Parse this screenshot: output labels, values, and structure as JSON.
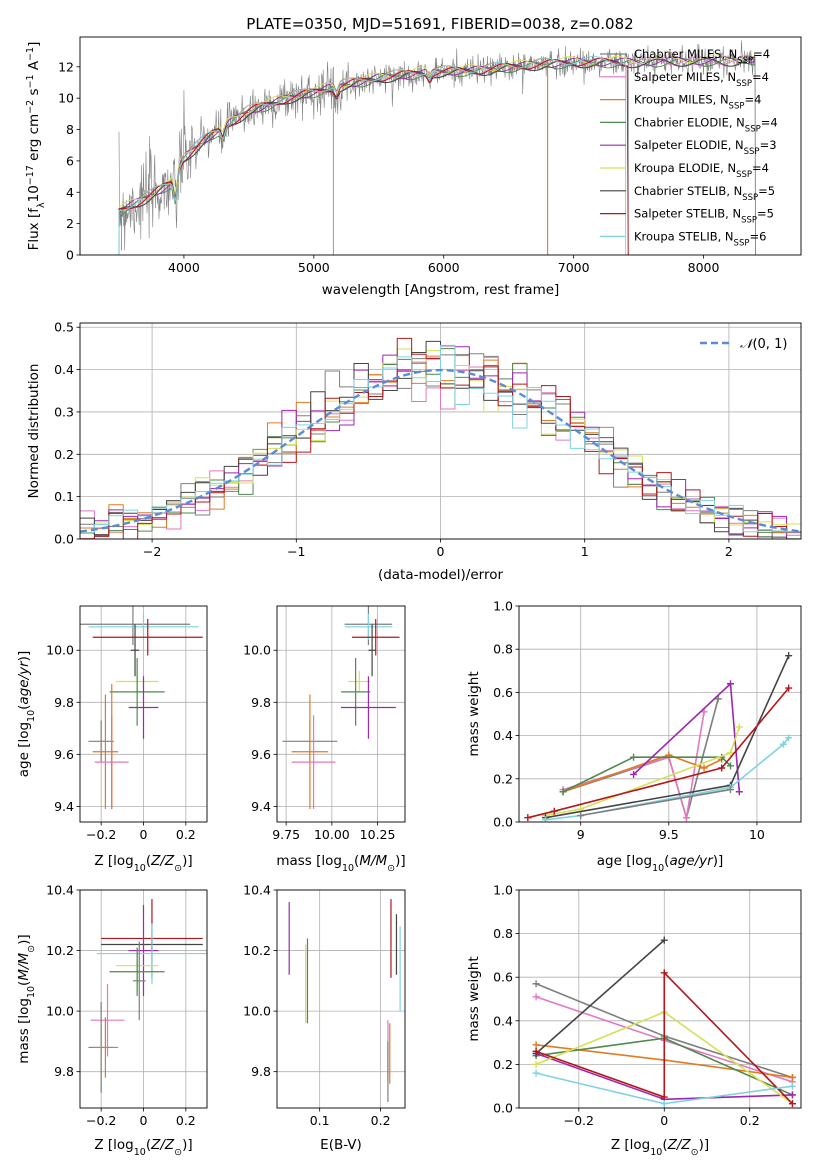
{
  "title": "PLATE=0350, MJD=51691, FIBERID=0038, z=0.082",
  "colors": {
    "Chabrier MILES": "#7f7f7f",
    "Salpeter MILES": "#e377c2",
    "Kroupa MILES": "#e07b22",
    "Chabrier ELODIE": "#4f8a4f",
    "Salpeter ELODIE": "#9d27b0",
    "Kroupa ELODIE": "#d4e157",
    "Chabrier STELIB": "#444444",
    "Salpeter STELIB": "#b3161b",
    "Kroupa STELIB": "#7fd3e0",
    "data": "#808080",
    "gauss": "#5b8bd6",
    "blue": "#5b8bd6"
  },
  "legend_spectrum": [
    {
      "name": "Chabrier MILES, N",
      "sub": "SSP",
      "tail": "=4"
    },
    {
      "name": "Salpeter MILES, N",
      "sub": "SSP",
      "tail": "=4"
    },
    {
      "name": "Kroupa MILES, N",
      "sub": "SSP",
      "tail": "=4"
    },
    {
      "name": "Chabrier ELODIE, N",
      "sub": "SSP",
      "tail": "=4"
    },
    {
      "name": "Salpeter ELODIE, N",
      "sub": "SSP",
      "tail": "=3"
    },
    {
      "name": "Kroupa ELODIE, N",
      "sub": "SSP",
      "tail": "=4"
    },
    {
      "name": "Chabrier STELIB, N",
      "sub": "SSP",
      "tail": "=5"
    },
    {
      "name": "Salpeter STELIB, N",
      "sub": "SSP",
      "tail": "=5"
    },
    {
      "name": "Kroupa STELIB, N",
      "sub": "SSP",
      "tail": "=6"
    }
  ],
  "chart_data": [
    {
      "type": "line",
      "id": "spectrum",
      "title": "PLATE=0350, MJD=51691, FIBERID=0038, z=0.082",
      "xlabel": "wavelength [Angstrom, rest frame]",
      "ylabel_pre": "Flux [f",
      "ylabel_sub": "λ",
      "ylabel_mid": "10",
      "ylabel_sup1": "−17",
      "ylabel_mid2": " erg cm",
      "ylabel_sup2": "−2",
      "ylabel_mid3": " s",
      "ylabel_sup3": "−1",
      "ylabel_end": " A",
      "ylabel_sup4": "−1",
      "ylabel_close": "]",
      "xlim": [
        3200,
        8750
      ],
      "ylim": [
        0,
        13.9
      ],
      "xticks": [
        4000,
        5000,
        6000,
        7000,
        8000
      ],
      "yticks": [
        0,
        2,
        4,
        6,
        8,
        10,
        12
      ],
      "grid": false,
      "legend_position": "top-right",
      "observed_continuum": [
        [
          3500,
          2.8
        ],
        [
          3700,
          3.6
        ],
        [
          3900,
          4.6
        ],
        [
          4000,
          6.2
        ],
        [
          4200,
          7.6
        ],
        [
          4500,
          9.2
        ],
        [
          4800,
          10.0
        ],
        [
          5000,
          10.4
        ],
        [
          5200,
          10.8
        ],
        [
          5500,
          11.3
        ],
        [
          5800,
          11.6
        ],
        [
          6000,
          11.7
        ],
        [
          6300,
          11.8
        ],
        [
          6500,
          12.0
        ],
        [
          6800,
          12.2
        ],
        [
          7000,
          12.3
        ],
        [
          7400,
          12.3
        ],
        [
          7800,
          12.4
        ],
        [
          8200,
          12.4
        ],
        [
          8400,
          12.5
        ]
      ],
      "model_cutoffs": {
        "Kroupa MILES": [
          3500,
          6800
        ],
        "Salpeter STELIB": [
          3500,
          7420
        ],
        "Kroupa STELIB": [
          3500,
          7400
        ],
        "Chabrier MILES": [
          3500,
          8400
        ]
      },
      "absorption_features": [
        {
          "x": 3934,
          "depth": 2.0
        },
        {
          "x": 4300,
          "depth": 0.8
        },
        {
          "x": 5175,
          "depth": 0.6
        },
        {
          "x": 5890,
          "depth": 0.5
        }
      ]
    },
    {
      "type": "area",
      "id": "residual-hist",
      "xlabel": "(data-model)/error",
      "ylabel": "Normed distribution",
      "xlim": [
        -2.5,
        2.5
      ],
      "ylim": [
        0,
        0.51
      ],
      "xticks": [
        -2,
        -1,
        0,
        1,
        2
      ],
      "yticks": [
        0.0,
        0.1,
        0.2,
        0.3,
        0.4,
        0.5
      ],
      "grid": true,
      "legend_label_prefix": "𝒩",
      "legend_label_args": "(0, 1)",
      "bin_width": 0.1,
      "histogram_model": "step histograms of 9 model fits around a unit normal"
    },
    {
      "type": "scatter",
      "id": "age-vs-Z",
      "xlabel_pre": "Z [log",
      "xlabel_sub": "10",
      "xlabel_end": "(Z/Z",
      "xlabel_sunsub": "⊙",
      "xlabel_close": ")]",
      "ylabel_pre": "age  [log",
      "ylabel_sub": "10",
      "ylabel_end": "(age/yr)]",
      "xlim": [
        -0.3,
        0.3
      ],
      "ylim": [
        9.34,
        10.17
      ],
      "xticks": [
        -0.2,
        0.0,
        0.2
      ],
      "yticks": [
        9.4,
        9.6,
        9.8,
        10.0
      ],
      "grid": true,
      "points": [
        {
          "model": "Chabrier MILES",
          "x": -0.05,
          "xerr": 0.27,
          "y": 10.1,
          "yerr": 0.08
        },
        {
          "model": "Kroupa STELIB",
          "x": 0.0,
          "xerr": 0.26,
          "y": 10.09,
          "yerr": 0.05
        },
        {
          "model": "Salpeter STELIB",
          "x": 0.02,
          "xerr": 0.26,
          "y": 10.05,
          "yerr": 0.07
        },
        {
          "model": "Chabrier STELIB",
          "x": -0.04,
          "xerr": 0.02,
          "y": 10.0,
          "yerr": 0.1
        },
        {
          "model": "Kroupa ELODIE",
          "x": -0.03,
          "xerr": 0.1,
          "y": 9.88,
          "yerr": 0.04
        },
        {
          "model": "Chabrier ELODIE",
          "x": -0.03,
          "xerr": 0.13,
          "y": 9.84,
          "yerr": 0.13
        },
        {
          "model": "Salpeter ELODIE",
          "x": 0.0,
          "xerr": 0.07,
          "y": 9.78,
          "yerr": 0.12
        },
        {
          "model": "Chabrier MILES",
          "x": -0.2,
          "xerr": 0.06,
          "y": 9.65,
          "yerr": 0.08
        },
        {
          "model": "Kroupa MILES",
          "x": -0.18,
          "xerr": 0.06,
          "y": 9.61,
          "yerr": 0.22
        },
        {
          "model": "Salpeter MILES",
          "x": -0.15,
          "xerr": 0.08,
          "y": 9.57,
          "yerr": 0.18
        },
        {
          "model": "Kroupa MILES",
          "x": -0.15,
          "xerr": 0.0,
          "y": 9.63,
          "yerr": 0.24
        }
      ]
    },
    {
      "type": "scatter",
      "id": "age-vs-mass",
      "xlabel_pre": "mass [log",
      "xlabel_sub": "10",
      "xlabel_end": "(M/M",
      "xlabel_sunsub": "⊙",
      "xlabel_close": ")]",
      "xlim": [
        9.7,
        10.4
      ],
      "ylim": [
        9.34,
        10.17
      ],
      "xticks": [
        9.75,
        10.0,
        10.25
      ],
      "xticklabels": [
        "9.75",
        "10.00",
        "10.25"
      ],
      "yticks": [
        9.4,
        9.6,
        9.8,
        10.0
      ],
      "grid": true,
      "points": [
        {
          "model": "Chabrier MILES",
          "x": 10.2,
          "xerr": 0.13,
          "y": 10.1,
          "yerr": 0.08
        },
        {
          "model": "Kroupa STELIB",
          "x": 10.2,
          "xerr": 0.13,
          "y": 10.09,
          "yerr": 0.05
        },
        {
          "model": "Salpeter STELIB",
          "x": 10.24,
          "xerr": 0.13,
          "y": 10.05,
          "yerr": 0.07
        },
        {
          "model": "Chabrier STELIB",
          "x": 10.22,
          "xerr": 0.02,
          "y": 10.0,
          "yerr": 0.1
        },
        {
          "model": "Kroupa ELODIE",
          "x": 10.15,
          "xerr": 0.06,
          "y": 9.88,
          "yerr": 0.04
        },
        {
          "model": "Chabrier ELODIE",
          "x": 10.13,
          "xerr": 0.08,
          "y": 9.84,
          "yerr": 0.13
        },
        {
          "model": "Salpeter ELODIE",
          "x": 10.2,
          "xerr": 0.15,
          "y": 9.78,
          "yerr": 0.12
        },
        {
          "model": "Chabrier MILES",
          "x": 9.88,
          "xerr": 0.15,
          "y": 9.65,
          "yerr": 0.08
        },
        {
          "model": "Kroupa MILES",
          "x": 9.88,
          "xerr": 0.1,
          "y": 9.61,
          "yerr": 0.22
        },
        {
          "model": "Salpeter MILES",
          "x": 9.9,
          "xerr": 0.12,
          "y": 9.57,
          "yerr": 0.18
        }
      ]
    },
    {
      "type": "line",
      "id": "weight-vs-age",
      "xlabel_pre": "age  [log",
      "xlabel_sub": "10",
      "xlabel_end": "(age/yr)]",
      "ylabel": "mass weight",
      "xlim": [
        8.65,
        10.25
      ],
      "ylim": [
        0.0,
        1.0
      ],
      "xticks": [
        9.0,
        9.5,
        10.0
      ],
      "yticks": [
        0.0,
        0.2,
        0.4,
        0.6,
        0.8,
        1.0
      ],
      "grid": true,
      "series": [
        {
          "model": "Chabrier MILES",
          "x": [
            8.9,
            9.5,
            9.6,
            9.78
          ],
          "y": [
            0.14,
            0.3,
            0.02,
            0.57
          ]
        },
        {
          "model": "Salpeter MILES",
          "x": [
            8.9,
            9.5,
            9.6,
            9.7
          ],
          "y": [
            0.15,
            0.3,
            0.02,
            0.51
          ]
        },
        {
          "model": "Kroupa MILES",
          "x": [
            8.9,
            9.5,
            9.7,
            9.8
          ],
          "y": [
            0.14,
            0.31,
            0.25,
            0.29
          ]
        },
        {
          "model": "Chabrier ELODIE",
          "x": [
            8.9,
            9.3,
            9.8,
            9.85
          ],
          "y": [
            0.14,
            0.3,
            0.3,
            0.26
          ]
        },
        {
          "model": "Salpeter ELODIE",
          "x": [
            9.3,
            9.85,
            9.9
          ],
          "y": [
            0.22,
            0.64,
            0.14
          ]
        },
        {
          "model": "Kroupa ELODIE",
          "x": [
            8.8,
            9.0,
            9.85,
            9.9
          ],
          "y": [
            0.03,
            0.06,
            0.32,
            0.44
          ]
        },
        {
          "model": "Chabrier STELIB",
          "x": [
            8.8,
            9.85,
            10.18
          ],
          "y": [
            0.02,
            0.17,
            0.77
          ]
        },
        {
          "model": "Salpeter STELIB",
          "x": [
            8.7,
            8.85,
            9.8,
            10.18
          ],
          "y": [
            0.02,
            0.05,
            0.25,
            0.62
          ]
        },
        {
          "model": "Kroupa STELIB",
          "x": [
            8.8,
            9.0,
            9.85,
            10.15,
            10.18
          ],
          "y": [
            0.01,
            0.03,
            0.16,
            0.36,
            0.39
          ]
        },
        {
          "model": "Chabrier MILES",
          "x": [
            9.0,
            9.85
          ],
          "y": [
            0.03,
            0.15
          ]
        }
      ]
    },
    {
      "type": "scatter",
      "id": "mass-vs-Z",
      "xlabel_pre": "Z [log",
      "xlabel_sub": "10",
      "xlabel_end": "(Z/Z",
      "xlabel_sunsub": "⊙",
      "xlabel_close": ")]",
      "ylabel_pre": "mass [log",
      "ylabel_sub": "10",
      "ylabel_end": "(M/M",
      "ylabel_sunsub": "⊙",
      "ylabel_close": ")]",
      "xlim": [
        -0.3,
        0.3
      ],
      "ylim": [
        9.68,
        10.4
      ],
      "xticks": [
        -0.2,
        0.0,
        0.2
      ],
      "yticks": [
        9.8,
        10.0,
        10.2,
        10.4
      ],
      "grid": true,
      "points": [
        {
          "model": "Salpeter STELIB",
          "x": 0.04,
          "xerr": 0.24,
          "y": 10.24,
          "yerr": 0.13
        },
        {
          "model": "Chabrier STELIB",
          "x": 0.04,
          "xerr": 0.24,
          "y": 10.22,
          "yerr": 0.02
        },
        {
          "model": "Salpeter ELODIE",
          "x": 0.0,
          "xerr": 0.07,
          "y": 10.2,
          "yerr": 0.15
        },
        {
          "model": "Kroupa STELIB",
          "x": 0.04,
          "xerr": 0.26,
          "y": 10.19,
          "yerr": 0.1
        },
        {
          "model": "Kroupa ELODIE",
          "x": -0.03,
          "xerr": 0.1,
          "y": 10.15,
          "yerr": 0.06
        },
        {
          "model": "Chabrier ELODIE",
          "x": -0.03,
          "xerr": 0.13,
          "y": 10.13,
          "yerr": 0.08
        },
        {
          "model": "Chabrier MILES",
          "x": -0.02,
          "xerr": 0.03,
          "y": 10.1,
          "yerr": 0.13
        },
        {
          "model": "Salpeter MILES",
          "x": -0.17,
          "xerr": 0.08,
          "y": 9.97,
          "yerr": 0.12
        },
        {
          "model": "Chabrier MILES",
          "x": -0.2,
          "xerr": 0.06,
          "y": 9.88,
          "yerr": 0.15
        },
        {
          "model": "Kroupa MILES",
          "x": -0.18,
          "xerr": 0.06,
          "y": 9.88,
          "yerr": 0.1
        }
      ]
    },
    {
      "type": "scatter",
      "id": "mass-vs-EBV",
      "xlabel": "E(B-V)",
      "xlim": [
        0.03,
        0.24
      ],
      "ylim": [
        9.68,
        10.4
      ],
      "xticks": [
        0.1,
        0.2
      ],
      "yticks": [
        9.8,
        10.0,
        10.2,
        10.4
      ],
      "grid": true,
      "points": [
        {
          "model": "Salpeter ELODIE",
          "x": 0.05,
          "y": 10.24,
          "yerr": 0.12
        },
        {
          "model": "Chabrier ELODIE",
          "x": 0.08,
          "y": 10.1,
          "yerr": 0.14
        },
        {
          "model": "Kroupa ELODIE",
          "x": 0.077,
          "y": 10.09,
          "yerr": 0.13
        },
        {
          "model": "Salpeter STELIB",
          "x": 0.217,
          "y": 10.24,
          "yerr": 0.13
        },
        {
          "model": "Chabrier STELIB",
          "x": 0.226,
          "y": 10.22,
          "yerr": 0.1
        },
        {
          "model": "Kroupa STELIB",
          "x": 0.232,
          "y": 10.14,
          "yerr": 0.14
        },
        {
          "model": "Salpeter MILES",
          "x": 0.212,
          "y": 9.87,
          "yerr": 0.1
        },
        {
          "model": "Kroupa MILES",
          "x": 0.215,
          "y": 9.86,
          "yerr": 0.1
        },
        {
          "model": "Chabrier MILES",
          "x": 0.212,
          "y": 9.8,
          "yerr": 0.1
        }
      ]
    },
    {
      "type": "line",
      "id": "weight-vs-Z",
      "xlabel_pre": "Z [log",
      "xlabel_sub": "10",
      "xlabel_end": "(Z/Z",
      "xlabel_sunsub": "⊙",
      "xlabel_close": ")]",
      "ylabel": "mass weight",
      "xlim": [
        -0.34,
        0.32
      ],
      "ylim": [
        0.0,
        1.0
      ],
      "xticks": [
        -0.2,
        0.0,
        0.2
      ],
      "yticks": [
        0.0,
        0.2,
        0.4,
        0.6,
        0.8,
        1.0
      ],
      "grid": true,
      "series": [
        {
          "model": "Chabrier MILES",
          "x": [
            -0.3,
            0.0,
            0.3
          ],
          "y": [
            0.57,
            0.33,
            0.14
          ]
        },
        {
          "model": "Salpeter MILES",
          "x": [
            -0.3,
            0.0,
            0.3
          ],
          "y": [
            0.51,
            0.31,
            0.12
          ]
        },
        {
          "model": "Kroupa MILES",
          "x": [
            -0.3,
            0.0,
            0.3
          ],
          "y": [
            0.29,
            0.22,
            0.14
          ]
        },
        {
          "model": "Chabrier ELODIE",
          "x": [
            -0.3,
            0.0,
            0.3
          ],
          "y": [
            0.24,
            0.32,
            0.06
          ]
        },
        {
          "model": "Salpeter ELODIE",
          "x": [
            -0.3,
            0.0,
            0.3
          ],
          "y": [
            0.25,
            0.04,
            0.06
          ]
        },
        {
          "model": "Kroupa ELODIE",
          "x": [
            -0.3,
            0.0,
            0.3
          ],
          "y": [
            0.2,
            0.44,
            0.02
          ]
        },
        {
          "model": "Chabrier STELIB",
          "x": [
            -0.3,
            0.0
          ],
          "y": [
            0.25,
            0.77
          ]
        },
        {
          "model": "Salpeter STELIB",
          "x": [
            -0.3,
            0.0,
            0.0,
            0.3
          ],
          "y": [
            0.26,
            0.05,
            0.62,
            0.02
          ]
        },
        {
          "model": "Kroupa STELIB",
          "x": [
            -0.3,
            0.0,
            0.3
          ],
          "y": [
            0.16,
            0.02,
            0.1
          ]
        }
      ]
    }
  ]
}
